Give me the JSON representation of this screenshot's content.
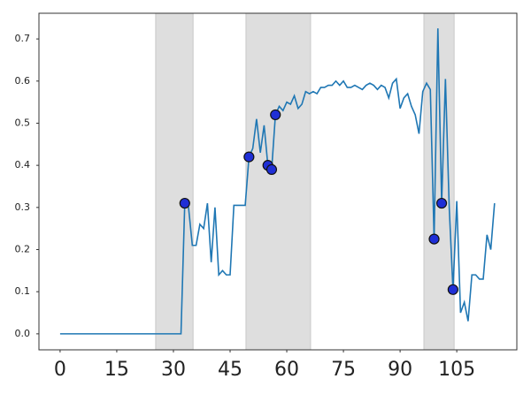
{
  "chart_data": {
    "type": "line",
    "x": [
      0,
      1,
      2,
      3,
      4,
      5,
      6,
      7,
      8,
      9,
      10,
      11,
      12,
      13,
      14,
      15,
      16,
      17,
      18,
      19,
      20,
      21,
      22,
      23,
      24,
      25,
      26,
      27,
      28,
      29,
      30,
      31,
      32,
      33,
      34,
      35,
      36,
      37,
      38,
      39,
      40,
      41,
      42,
      43,
      44,
      45,
      46,
      47,
      48,
      49,
      50,
      51,
      52,
      53,
      54,
      55,
      56,
      57,
      58,
      59,
      60,
      61,
      62,
      63,
      64,
      65,
      66,
      67,
      68,
      69,
      70,
      71,
      72,
      73,
      74,
      75,
      76,
      77,
      78,
      79,
      80,
      81,
      82,
      83,
      84,
      85,
      86,
      87,
      88,
      89,
      90,
      91,
      92,
      93,
      94,
      95,
      96,
      97,
      98,
      99,
      100,
      101,
      102,
      103,
      104,
      105,
      106,
      107,
      108,
      109,
      110,
      111,
      112,
      113,
      114,
      115
    ],
    "series": [
      {
        "color": "#1f77b4",
        "values": [
          0,
          0,
          0,
          0,
          0,
          0,
          0,
          0,
          0,
          0,
          0,
          0,
          0,
          0,
          0,
          0,
          0,
          0,
          0,
          0,
          0,
          0,
          0,
          0,
          0,
          0,
          0,
          0,
          0,
          0,
          0,
          0,
          0,
          0.31,
          0.3,
          0.21,
          0.21,
          0.26,
          0.25,
          0.31,
          0.17,
          0.3,
          0.14,
          0.15,
          0.14,
          0.14,
          0.305,
          0.305,
          0.305,
          0.305,
          0.42,
          0.44,
          0.51,
          0.43,
          0.495,
          0.4,
          0.39,
          0.52,
          0.54,
          0.53,
          0.55,
          0.545,
          0.565,
          0.535,
          0.545,
          0.575,
          0.57,
          0.575,
          0.57,
          0.585,
          0.585,
          0.59,
          0.59,
          0.6,
          0.59,
          0.6,
          0.585,
          0.585,
          0.59,
          0.585,
          0.58,
          0.59,
          0.595,
          0.59,
          0.58,
          0.59,
          0.585,
          0.56,
          0.595,
          0.605,
          0.535,
          0.56,
          0.57,
          0.54,
          0.52,
          0.475,
          0.575,
          0.595,
          0.58,
          0.225,
          0.725,
          0.31,
          0.605,
          0.3,
          0.105,
          0.315,
          0.05,
          0.075,
          0.03,
          0.14,
          0.14,
          0.13,
          0.13,
          0.235,
          0.2,
          0.31
        ]
      }
    ],
    "markers": {
      "color": "#1f2fd6",
      "x": [
        33,
        50,
        55,
        56,
        57,
        99,
        101,
        104
      ],
      "values": [
        0.31,
        0.42,
        0.4,
        0.39,
        0.52,
        0.225,
        0.31,
        0.105
      ]
    },
    "spans": [
      [
        25.3,
        35.2
      ],
      [
        49.2,
        66.3
      ],
      [
        96.3,
        104.3
      ]
    ],
    "span_color": "#dedede",
    "xlim": [
      -5.6,
      120.9
    ],
    "ylim": [
      -0.038,
      0.761
    ],
    "xticks": [
      0,
      15,
      30,
      45,
      60,
      75,
      90,
      105
    ],
    "yticks": [
      {
        "value": 0,
        "label": "0.0"
      },
      0.1,
      0.2,
      0.3,
      0.4,
      0.5,
      0.6,
      0.7
    ],
    "grid": false
  }
}
